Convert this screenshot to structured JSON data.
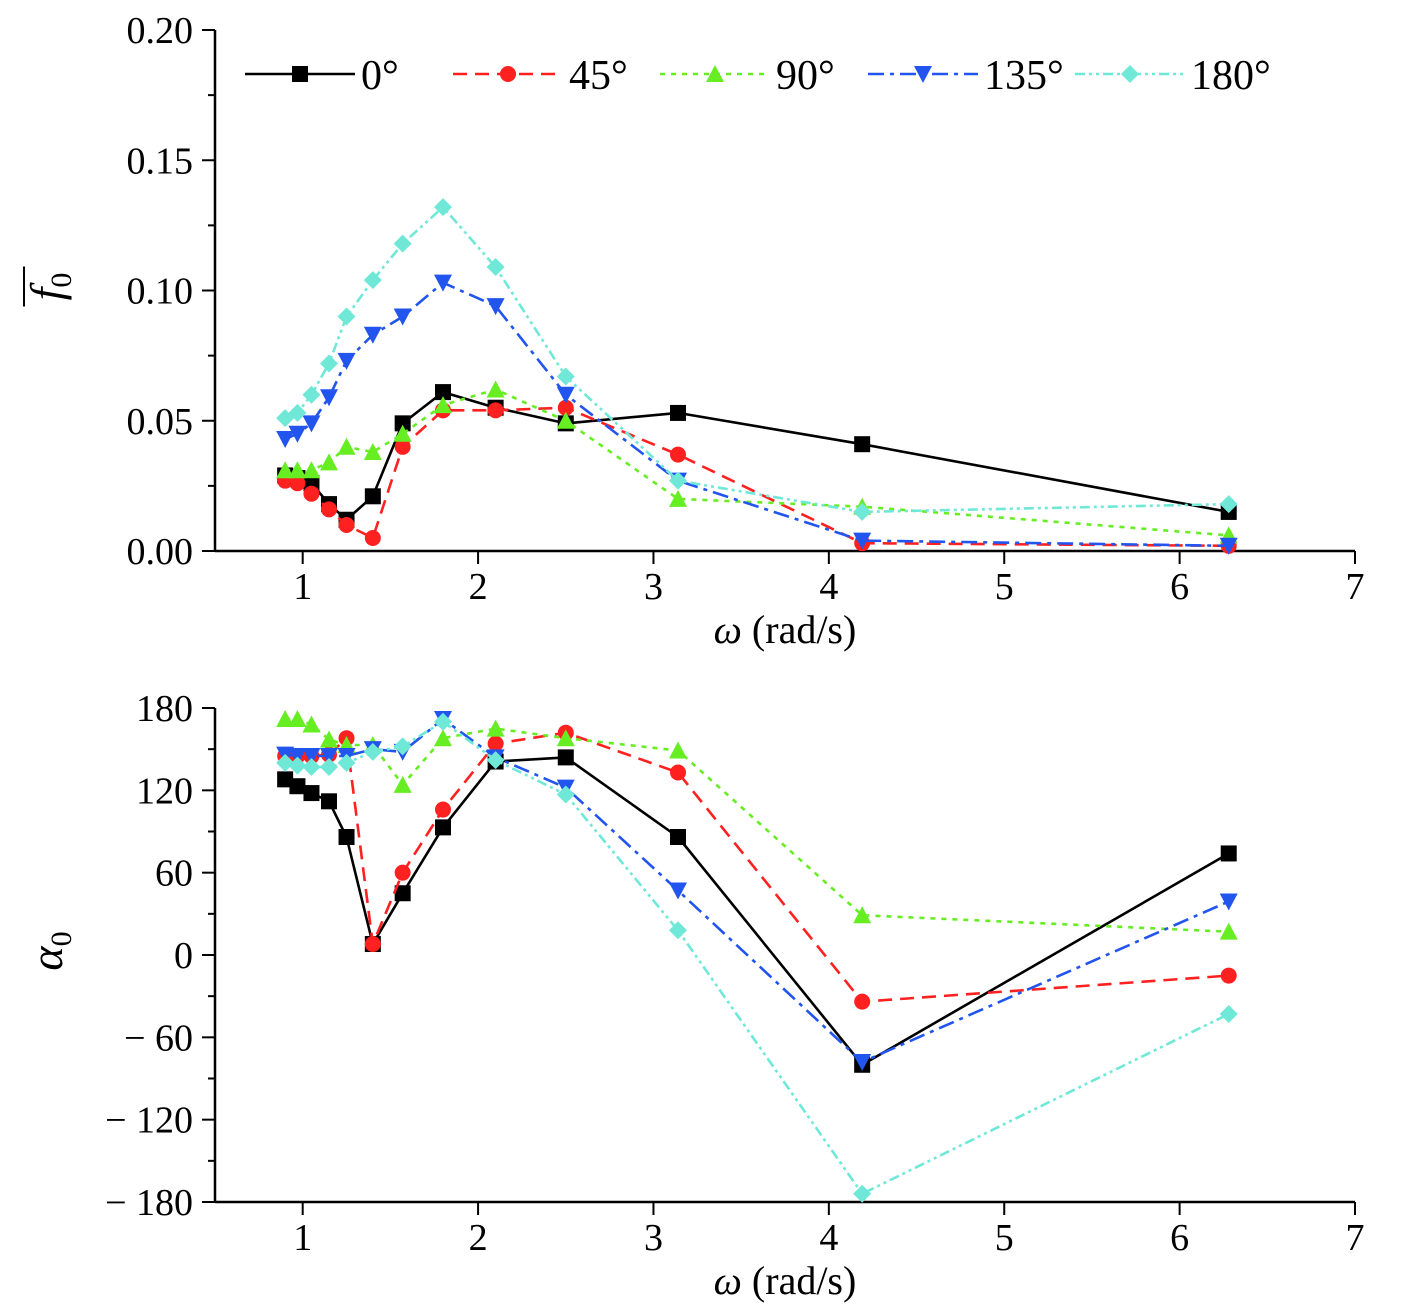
{
  "legend": {
    "placement": "top",
    "entries": [
      "0°",
      "45°",
      "90°",
      "135°",
      "180°"
    ]
  },
  "series_styles": [
    {
      "color": "#000000",
      "dash": "",
      "marker": "square"
    },
    {
      "color": "#ff2020",
      "dash": "14 8",
      "marker": "circle"
    },
    {
      "color": "#66ee22",
      "dash": "5 6",
      "marker": "triangle-up"
    },
    {
      "color": "#2255ee",
      "dash": "16 6 4 6",
      "marker": "triangle-down"
    },
    {
      "color": "#6fe8d8",
      "dash": "10 4 3 4 3 4",
      "marker": "diamond"
    }
  ],
  "chart_data": [
    {
      "type": "line",
      "xlabel_symbol": "ω",
      "xlabel_unit": " (rad/s)",
      "ylabel_symbol": "f",
      "ylabel_sub": "0",
      "ylabel_overbar": true,
      "xlim": [
        0.5,
        7
      ],
      "ylim": [
        0,
        0.2
      ],
      "xticks": [
        1,
        2,
        3,
        4,
        5,
        6,
        7
      ],
      "yticks": [
        0,
        0.05,
        0.1,
        0.15,
        0.2
      ],
      "yticklabels": [
        "0.00",
        "0.05",
        "0.10",
        "0.15",
        "0.20"
      ],
      "grid": false,
      "series": [
        {
          "name": "0°",
          "x": [
            0.9,
            0.97,
            1.05,
            1.15,
            1.25,
            1.4,
            1.57,
            1.8,
            2.1,
            2.5,
            3.14,
            4.19,
            6.28
          ],
          "y": [
            0.029,
            0.028,
            0.026,
            0.018,
            0.012,
            0.021,
            0.049,
            0.061,
            0.055,
            0.049,
            0.053,
            0.041,
            0.015
          ]
        },
        {
          "name": "45°",
          "x": [
            0.9,
            0.97,
            1.05,
            1.15,
            1.25,
            1.4,
            1.57,
            1.8,
            2.1,
            2.5,
            3.14,
            4.19,
            6.28
          ],
          "y": [
            0.027,
            0.026,
            0.022,
            0.016,
            0.01,
            0.005,
            0.04,
            0.054,
            0.054,
            0.055,
            0.037,
            0.003,
            0.002
          ]
        },
        {
          "name": "90°",
          "x": [
            0.9,
            0.97,
            1.05,
            1.15,
            1.25,
            1.4,
            1.57,
            1.8,
            2.1,
            2.5,
            3.14,
            4.19,
            6.28
          ],
          "y": [
            0.031,
            0.031,
            0.031,
            0.034,
            0.04,
            0.038,
            0.045,
            0.056,
            0.062,
            0.05,
            0.02,
            0.017,
            0.006
          ]
        },
        {
          "name": "135°",
          "x": [
            0.9,
            0.97,
            1.05,
            1.15,
            1.25,
            1.4,
            1.57,
            1.8,
            2.1,
            2.5,
            3.14,
            4.19,
            6.28
          ],
          "y": [
            0.043,
            0.045,
            0.049,
            0.059,
            0.073,
            0.083,
            0.09,
            0.103,
            0.094,
            0.06,
            0.027,
            0.004,
            0.002
          ]
        },
        {
          "name": "180°",
          "x": [
            0.9,
            0.97,
            1.05,
            1.15,
            1.25,
            1.4,
            1.57,
            1.8,
            2.1,
            2.5,
            3.14,
            4.19,
            6.28
          ],
          "y": [
            0.051,
            0.053,
            0.06,
            0.072,
            0.09,
            0.104,
            0.118,
            0.132,
            0.109,
            0.067,
            0.027,
            0.015,
            0.018
          ]
        }
      ]
    },
    {
      "type": "line",
      "xlabel_symbol": "ω",
      "xlabel_unit": " (rad/s)",
      "ylabel_symbol": "α",
      "ylabel_sub": "0",
      "ylabel_overbar": false,
      "xlim": [
        0.5,
        7
      ],
      "ylim": [
        -180,
        180
      ],
      "xticks": [
        1,
        2,
        3,
        4,
        5,
        6,
        7
      ],
      "yticks": [
        -180,
        -120,
        -60,
        0,
        60,
        120,
        180
      ],
      "yticklabels": [
        "− 180",
        "− 120",
        "− 60",
        "0",
        "60",
        "120",
        "180"
      ],
      "grid": false,
      "series": [
        {
          "name": "0°",
          "x": [
            0.9,
            0.97,
            1.05,
            1.15,
            1.25,
            1.4,
            1.57,
            1.8,
            2.1,
            2.5,
            3.14,
            4.19,
            6.28
          ],
          "y": [
            128,
            123,
            118,
            112,
            86,
            8,
            45,
            93,
            141,
            144,
            86,
            -80,
            74
          ]
        },
        {
          "name": "45°",
          "x": [
            0.9,
            0.97,
            1.05,
            1.15,
            1.25,
            1.4,
            1.57,
            1.8,
            2.1,
            2.5,
            3.14,
            4.19,
            6.28
          ],
          "y": [
            145,
            145,
            145,
            146,
            158,
            8,
            60,
            106,
            154,
            162,
            133,
            -34,
            -15
          ]
        },
        {
          "name": "90°",
          "x": [
            0.9,
            0.97,
            1.05,
            1.15,
            1.25,
            1.4,
            1.57,
            1.8,
            2.1,
            2.5,
            3.14,
            4.19,
            6.28
          ],
          "y": [
            172,
            172,
            168,
            157,
            153,
            153,
            124,
            158,
            165,
            158,
            149,
            29,
            17
          ]
        },
        {
          "name": "135°",
          "x": [
            0.9,
            0.97,
            1.05,
            1.15,
            1.25,
            1.4,
            1.57,
            1.8,
            2.1,
            2.5,
            3.14,
            4.19,
            6.28
          ],
          "y": [
            146,
            145,
            145,
            145,
            145,
            150,
            148,
            172,
            144,
            122,
            47,
            -78,
            39
          ]
        },
        {
          "name": "180°",
          "x": [
            0.9,
            0.97,
            1.05,
            1.15,
            1.25,
            1.4,
            1.57,
            1.8,
            2.1,
            2.5,
            3.14,
            4.19,
            6.28
          ],
          "y": [
            140,
            138,
            137,
            137,
            140,
            148,
            152,
            170,
            142,
            117,
            18,
            -174,
            -43
          ]
        }
      ]
    }
  ]
}
